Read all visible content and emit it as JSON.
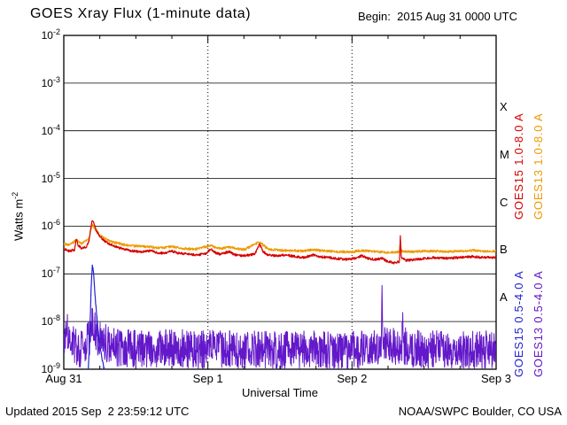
{
  "header": {
    "title": "GOES Xray Flux (1-minute data)",
    "begin": "Begin:  2015 Aug 31 0000 UTC"
  },
  "labels": {
    "y_axis_base": "Watts m",
    "y_axis_exp": "-2",
    "x_axis": "Universal Time"
  },
  "footer": {
    "updated": "Updated 2015 Sep  2 23:59:12 UTC",
    "credit": "NOAA/SWPC Boulder, CO USA"
  },
  "chart_data": {
    "type": "line",
    "title": "GOES Xray Flux (1-minute data)",
    "begin": "2015 Aug 31 0000 UTC",
    "xlabel": "Universal Time",
    "ylabel": "Watts m^-2",
    "x_range_hours": [
      0,
      72
    ],
    "y_exponent_range": [
      -2,
      -9
    ],
    "y_scale": "log",
    "x_ticks": [
      {
        "t": 0,
        "label": "Aug 31"
      },
      {
        "t": 24,
        "label": "Sep 1"
      },
      {
        "t": 48,
        "label": "Sep 2"
      },
      {
        "t": 72,
        "label": "Sep 3"
      }
    ],
    "y_tick_exponents": [
      -2,
      -3,
      -4,
      -5,
      -6,
      -7,
      -8,
      -9
    ],
    "class_bands": [
      {
        "label": "X",
        "exp_center": -3.5
      },
      {
        "label": "M",
        "exp_center": -4.5
      },
      {
        "label": "C",
        "exp_center": -5.5
      },
      {
        "label": "B",
        "exp_center": -6.5
      },
      {
        "label": "A",
        "exp_center": -7.5
      }
    ],
    "grid": {
      "horizontal_at_exponents": [
        -2,
        -3,
        -4,
        -5,
        -6,
        -7,
        -8,
        -9
      ],
      "vertical_dotted_at_hours": [
        24,
        48
      ]
    },
    "series": [
      {
        "name": "GOES15 1.0-8.0 A",
        "color": "#d60000",
        "width": 1.2,
        "noise_dex": 0.025,
        "seed": 11,
        "step_hours": 0.05,
        "points": [
          [
            0,
            3.4e-07
          ],
          [
            0.5,
            3.1e-07
          ],
          [
            1,
            3e-07
          ],
          [
            1.8,
            3.2e-07
          ],
          [
            2.1,
            5.5e-07
          ],
          [
            2.4,
            4e-07
          ],
          [
            3,
            3.4e-07
          ],
          [
            3.8,
            3.7e-07
          ],
          [
            4.2,
            5e-07
          ],
          [
            4.55,
            1e-06
          ],
          [
            4.75,
            1.35e-06
          ],
          [
            5.0,
            1.15e-06
          ],
          [
            5.4,
            8e-07
          ],
          [
            6,
            6e-07
          ],
          [
            7,
            4.6e-07
          ],
          [
            8,
            4e-07
          ],
          [
            9,
            3.6e-07
          ],
          [
            10,
            3.3e-07
          ],
          [
            11.5,
            3e-07
          ],
          [
            13,
            2.9e-07
          ],
          [
            14.5,
            3.1e-07
          ],
          [
            15.5,
            2.8e-07
          ],
          [
            16.5,
            2.7e-07
          ],
          [
            18,
            3e-07
          ],
          [
            19,
            2.7e-07
          ],
          [
            20.5,
            2.6e-07
          ],
          [
            22,
            2.5e-07
          ],
          [
            23.5,
            2.6e-07
          ],
          [
            24.5,
            3.3e-07
          ],
          [
            25.2,
            2.8e-07
          ],
          [
            26,
            2.6e-07
          ],
          [
            27.5,
            2.9e-07
          ],
          [
            28.5,
            2.5e-07
          ],
          [
            30,
            2.4e-07
          ],
          [
            31.8,
            2.6e-07
          ],
          [
            32.6,
            4.2e-07
          ],
          [
            33.2,
            2.9e-07
          ],
          [
            34,
            2.5e-07
          ],
          [
            35.5,
            2.4e-07
          ],
          [
            37,
            2.5e-07
          ],
          [
            38.5,
            2.3e-07
          ],
          [
            40,
            2.2e-07
          ],
          [
            41.5,
            2.5e-07
          ],
          [
            42.5,
            2.3e-07
          ],
          [
            44,
            2.2e-07
          ],
          [
            45.5,
            2.1e-07
          ],
          [
            47,
            2e-07
          ],
          [
            48.5,
            2.1e-07
          ],
          [
            49.6,
            2.4e-07
          ],
          [
            50.6,
            2.1e-07
          ],
          [
            52,
            2e-07
          ],
          [
            53,
            2.1e-07
          ],
          [
            54,
            1.8e-07
          ],
          [
            55,
            1.7e-07
          ],
          [
            55.9,
            1.8e-07
          ],
          [
            56.05,
            6.5e-07
          ],
          [
            56.2,
            2.2e-07
          ],
          [
            57,
            1.9e-07
          ],
          [
            58.5,
            2e-07
          ],
          [
            60,
            2.1e-07
          ],
          [
            62,
            2.2e-07
          ],
          [
            64,
            2.1e-07
          ],
          [
            66,
            2.2e-07
          ],
          [
            68,
            2.3e-07
          ],
          [
            70,
            2.2e-07
          ],
          [
            72,
            2.2e-07
          ]
        ]
      },
      {
        "name": "GOES13 1.0-8.0 A",
        "color": "#ee9a00",
        "width": 1.2,
        "noise_dex": 0.025,
        "seed": 23,
        "step_hours": 0.05,
        "points": [
          [
            0,
            4.3e-07
          ],
          [
            1,
            4e-07
          ],
          [
            2.1,
            5.2e-07
          ],
          [
            3,
            4.3e-07
          ],
          [
            4.2,
            5.6e-07
          ],
          [
            4.75,
            1.05e-06
          ],
          [
            5.2,
            9e-07
          ],
          [
            6,
            6.6e-07
          ],
          [
            7,
            5.3e-07
          ],
          [
            8,
            4.7e-07
          ],
          [
            10,
            4.1e-07
          ],
          [
            12,
            3.8e-07
          ],
          [
            14,
            3.7e-07
          ],
          [
            16,
            3.5e-07
          ],
          [
            18,
            3.7e-07
          ],
          [
            20,
            3.4e-07
          ],
          [
            22,
            3.3e-07
          ],
          [
            24.5,
            3.9e-07
          ],
          [
            26,
            3.4e-07
          ],
          [
            27.5,
            3.6e-07
          ],
          [
            30,
            3.2e-07
          ],
          [
            32.6,
            4.7e-07
          ],
          [
            34,
            3.3e-07
          ],
          [
            36,
            3.1e-07
          ],
          [
            38,
            3.1e-07
          ],
          [
            40,
            3e-07
          ],
          [
            41.5,
            3.2e-07
          ],
          [
            44,
            3e-07
          ],
          [
            46,
            2.9e-07
          ],
          [
            48,
            2.9e-07
          ],
          [
            49.6,
            3.1e-07
          ],
          [
            52,
            2.9e-07
          ],
          [
            54,
            2.8e-07
          ],
          [
            55.9,
            2.9e-07
          ],
          [
            56.05,
            5.5e-07
          ],
          [
            56.2,
            3e-07
          ],
          [
            58,
            2.9e-07
          ],
          [
            60,
            3e-07
          ],
          [
            62,
            3e-07
          ],
          [
            64,
            2.9e-07
          ],
          [
            66,
            3e-07
          ],
          [
            68,
            3.1e-07
          ],
          [
            70,
            3e-07
          ],
          [
            72,
            3e-07
          ]
        ]
      },
      {
        "name": "GOES15 0.5-4.0 A",
        "color": "#2323d2",
        "width": 1.2,
        "noise_dex": 0.03,
        "seed": 37,
        "step_hours": 0.05,
        "points": [
          [
            0,
            6e-10
          ],
          [
            4.0,
            6e-10
          ],
          [
            4.3,
            4e-09
          ],
          [
            4.55,
            5e-08
          ],
          [
            4.75,
            1.6e-07
          ],
          [
            4.95,
            1.1e-07
          ],
          [
            5.2,
            3.5e-08
          ],
          [
            5.5,
            1.2e-08
          ],
          [
            5.9,
            4e-09
          ],
          [
            6.3,
            1.8e-09
          ],
          [
            6.8,
            9e-10
          ],
          [
            7.2,
            6e-10
          ],
          [
            72,
            5e-10
          ]
        ]
      },
      {
        "name": "GOES13 0.5-4.0 A",
        "color": "#6318c9",
        "width": 1.0,
        "noise_dex": 0.4,
        "seed": 53,
        "step_hours": 0.05,
        "points": [
          [
            0,
            4.5e-09
          ],
          [
            0.7,
            6.5e-09
          ],
          [
            1.4,
            3.2e-09
          ],
          [
            3,
            2.7e-09
          ],
          [
            4.3,
            4.5e-09
          ],
          [
            4.8,
            9e-09
          ],
          [
            5.3,
            6e-09
          ],
          [
            6,
            4e-09
          ],
          [
            8,
            3e-09
          ],
          [
            10,
            2.7e-09
          ],
          [
            14,
            2.7e-09
          ],
          [
            18,
            2.9e-09
          ],
          [
            22,
            2.5e-09
          ],
          [
            26,
            2.7e-09
          ],
          [
            30,
            2.5e-09
          ],
          [
            34,
            2.6e-09
          ],
          [
            38,
            2.5e-09
          ],
          [
            42,
            2.6e-09
          ],
          [
            46,
            2.4e-09
          ],
          [
            50,
            2.6e-09
          ],
          [
            52.9,
            2.9e-09
          ],
          [
            53.0,
            5e-08
          ],
          [
            53.15,
            3.6e-09
          ],
          [
            54,
            2.9e-09
          ],
          [
            56.3,
            3e-09
          ],
          [
            56.42,
            2.3e-08
          ],
          [
            56.6,
            3e-09
          ],
          [
            58,
            2.7e-09
          ],
          [
            62,
            2.6e-09
          ],
          [
            66,
            2.5e-09
          ],
          [
            70,
            2.6e-09
          ],
          [
            72,
            2.6e-09
          ]
        ]
      }
    ]
  }
}
